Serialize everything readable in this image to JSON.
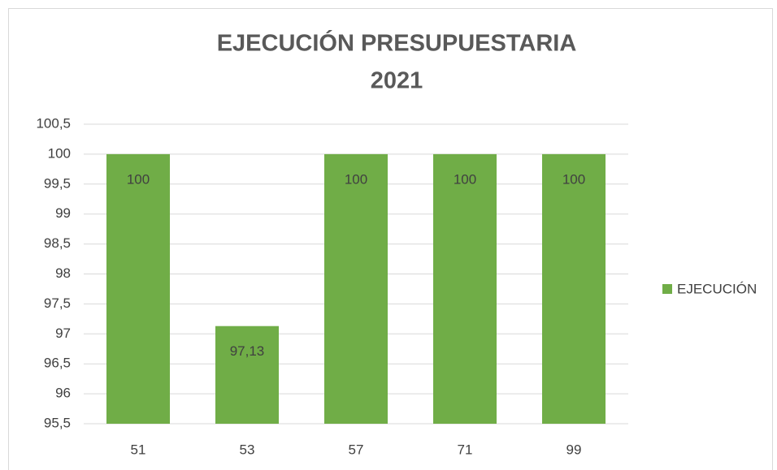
{
  "chart_data": {
    "type": "bar",
    "title": [
      "EJECUCIÓN PRESUPUESTARIA",
      "2021"
    ],
    "categories": [
      "51",
      "53",
      "57",
      "71",
      "99"
    ],
    "series": [
      {
        "name": "EJECUCIÓN",
        "color": "#70ad47",
        "values": [
          100,
          97.13,
          100,
          100,
          100
        ],
        "value_labels": [
          "100",
          "97,13",
          "100",
          "100",
          "100"
        ]
      }
    ],
    "ylim": [
      95.5,
      100.5
    ],
    "yticks": [
      {
        "value": 95.5,
        "label": "95,5"
      },
      96,
      {
        "value": 96.5,
        "label": "96,5"
      },
      97,
      {
        "value": 97.5,
        "label": "97,5"
      },
      98,
      {
        "value": 98.5,
        "label": "98,5"
      },
      99,
      {
        "value": 99.5,
        "label": "99,5"
      },
      100,
      {
        "value": 100.5,
        "label": "100,5"
      }
    ],
    "grid": true,
    "legend": "right"
  }
}
